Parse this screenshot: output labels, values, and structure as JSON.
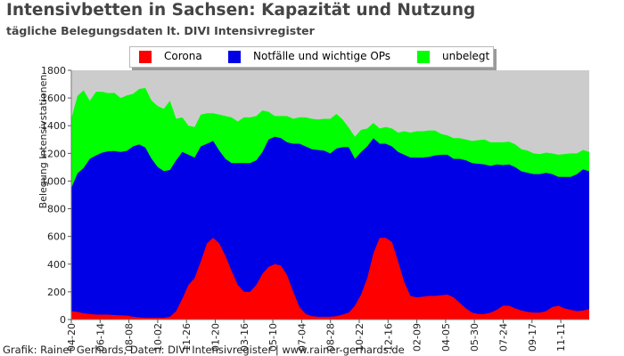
{
  "header": {
    "title": "Intensivbetten in Sachsen: Kapazität und Nutzung",
    "subtitle": "tägliche Belegungsdaten lt. DIVI Intensivregister"
  },
  "footer": {
    "credit": "Grafik: Rainer Gerhards, Daten: DIVI Intensivregister | www.rainer-gerhards.de"
  },
  "colors": {
    "corona": "#ff0000",
    "notfaelle": "#0000e6",
    "unbelegt": "#00ff00",
    "background": "#cccccc"
  },
  "chart_data": {
    "type": "area",
    "stacked": true,
    "title": "Intensivbetten in Sachsen: Kapazität und Nutzung",
    "subtitle": "tägliche Belegungsdaten lt. DIVI Intensivregister",
    "ylabel": "Belegung Intensivstationen",
    "xlabel": "",
    "ylim": [
      0,
      1800
    ],
    "yticks": [
      0,
      200,
      400,
      600,
      800,
      1000,
      1200,
      1400,
      1600,
      1800
    ],
    "grid": false,
    "legend_position": "top",
    "xtick_labels": [
      "04-20",
      "06-14",
      "08-08",
      "10-02",
      "11-26",
      "01-20",
      "03-16",
      "05-10",
      "07-04",
      "08-28",
      "10-22",
      "12-16",
      "02-09",
      "04-05",
      "05-30",
      "07-24",
      "09-17",
      "11-11"
    ],
    "series": [
      {
        "name": "Corona",
        "color": "#ff0000",
        "values": [
          60,
          55,
          45,
          40,
          35,
          35,
          35,
          32,
          30,
          28,
          20,
          15,
          12,
          12,
          12,
          12,
          20,
          60,
          150,
          250,
          300,
          420,
          550,
          590,
          550,
          460,
          350,
          250,
          200,
          200,
          250,
          330,
          380,
          400,
          390,
          320,
          200,
          90,
          40,
          25,
          20,
          20,
          20,
          25,
          35,
          50,
          100,
          180,
          300,
          480,
          590,
          590,
          560,
          420,
          270,
          170,
          160,
          165,
          170,
          170,
          175,
          180,
          160,
          120,
          80,
          50,
          40,
          40,
          50,
          70,
          100,
          100,
          80,
          65,
          55,
          50,
          50,
          60,
          90,
          100,
          80,
          70,
          60,
          65,
          75
        ]
      },
      {
        "name": "Notfälle und wichtige OPs",
        "values": [
          890,
          1000,
          1050,
          1120,
          1150,
          1170,
          1180,
          1185,
          1180,
          1190,
          1230,
          1250,
          1230,
          1150,
          1090,
          1060,
          1060,
          1090,
          1060,
          940,
          870,
          830,
          720,
          700,
          670,
          700,
          780,
          880,
          930,
          930,
          900,
          880,
          920,
          920,
          920,
          960,
          1070,
          1180,
          1210,
          1205,
          1205,
          1200,
          1180,
          1210,
          1210,
          1195,
          1060,
          1030,
          950,
          830,
          680,
          680,
          690,
          790,
          920,
          1000,
          1010,
          1005,
          1005,
          1015,
          1015,
          1010,
          1000,
          1040,
          1070,
          1080,
          1085,
          1080,
          1060,
          1050,
          1015,
          1020,
          1020,
          1005,
          1005,
          1000,
          1000,
          1000,
          960,
          930,
          950,
          960,
          990,
          1020,
          995
        ]
      },
      {
        "name": "unbelegt",
        "values": [
          500,
          560,
          560,
          420,
          460,
          440,
          420,
          420,
          390,
          400,
          380,
          400,
          430,
          420,
          440,
          450,
          500,
          300,
          250,
          210,
          220,
          230,
          220,
          200,
          260,
          310,
          330,
          300,
          330,
          330,
          320,
          300,
          200,
          150,
          160,
          190,
          180,
          190,
          210,
          220,
          220,
          230,
          250,
          250,
          200,
          140,
          160,
          160,
          130,
          110,
          110,
          120,
          130,
          140,
          170,
          180,
          190,
          190,
          190,
          180,
          150,
          140,
          150,
          150,
          150,
          160,
          170,
          180,
          170,
          160,
          165,
          165,
          165,
          160,
          160,
          150,
          145,
          145,
          150,
          160,
          165,
          170,
          150,
          140,
          140
        ]
      }
    ]
  }
}
